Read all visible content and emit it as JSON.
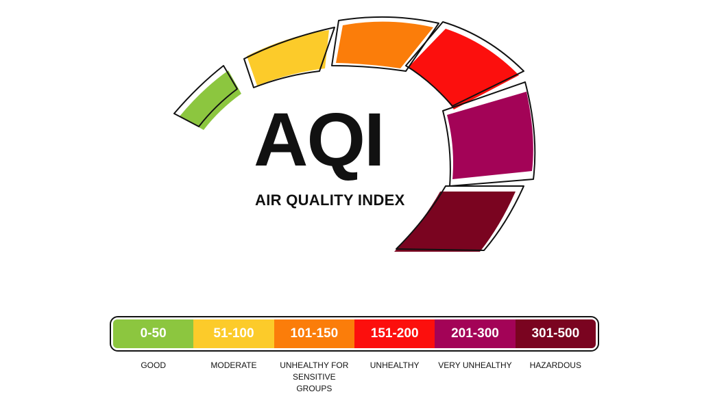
{
  "title": "AQI",
  "subtitle": "AIR QUALITY INDEX",
  "categories": [
    {
      "range": "0-50",
      "label": [
        "GOOD"
      ],
      "color": "#8cc63f"
    },
    {
      "range": "51-100",
      "label": [
        "MODERATE"
      ],
      "color": "#fccb2a"
    },
    {
      "range": "101-150",
      "label": [
        "UNHEALTHY FOR",
        "SENSITIVE GROUPS"
      ],
      "color": "#fb7d0a"
    },
    {
      "range": "151-200",
      "label": [
        "UNHEALTHY"
      ],
      "color": "#fc0f0d"
    },
    {
      "range": "201-300",
      "label": [
        "VERY UNHEALTHY"
      ],
      "color": "#a30357"
    },
    {
      "range": "301-500",
      "label": [
        "HAZARDOUS"
      ],
      "color": "#7a0420"
    }
  ]
}
